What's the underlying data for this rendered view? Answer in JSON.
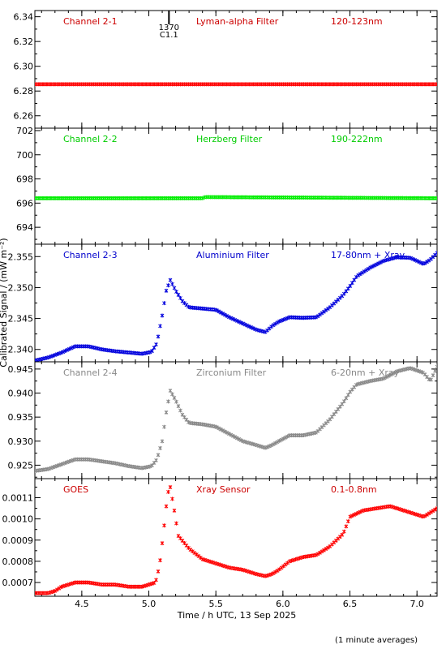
{
  "figure": {
    "xlabel": "Time / h UTC, 13 Sep 2025",
    "ylabel": "Calibrated Signal / (mW m⁻²)",
    "footnote": "(1 minute averages)",
    "xlim": [
      4.15,
      7.15
    ],
    "xticks": [
      4.5,
      5.0,
      5.5,
      6.0,
      6.5,
      7.0
    ],
    "xtick_labels": [
      "4.5",
      "5.0",
      "5.5",
      "6.0",
      "6.5",
      "7.0"
    ],
    "flare_marker": {
      "x": 5.15,
      "label_top": "1370",
      "label_bottom": "C1.1"
    }
  },
  "chart_data": [
    {
      "type": "scatter",
      "panel": "Channel 2-1",
      "labels": [
        "Channel 2-1",
        "Lyman-alpha Filter",
        "120-123nm"
      ],
      "label_color": "#cc0000",
      "color": "#ff0000",
      "ylim": [
        6.25,
        6.345
      ],
      "yticks": [
        6.26,
        6.28,
        6.3,
        6.32,
        6.34
      ],
      "ytick_labels": [
        "6.26",
        "6.28",
        "6.30",
        "6.32",
        "6.34"
      ],
      "series": [
        {
          "x": [
            4.15,
            7.15
          ],
          "y": [
            6.2855,
            6.2855
          ]
        }
      ]
    },
    {
      "type": "scatter",
      "panel": "Channel 2-2",
      "labels": [
        "Channel 2-2",
        "Herzberg Filter",
        "190-222nm"
      ],
      "label_color": "#00cc00",
      "color": "#00ee00",
      "ylim": [
        692.6,
        702.2
      ],
      "yticks": [
        694,
        696,
        698,
        700,
        702
      ],
      "ytick_labels": [
        "694",
        "696",
        "698",
        "700",
        "702"
      ],
      "series": [
        {
          "x": [
            4.15,
            5.4,
            5.42,
            7.15
          ],
          "y": [
            696.4,
            696.4,
            696.5,
            696.4
          ]
        }
      ]
    },
    {
      "type": "scatter",
      "panel": "Channel 2-3",
      "labels": [
        "Channel 2-3",
        "Aluminium Filter",
        "17-80nm + Xray"
      ],
      "label_color": "#0000cc",
      "color": "#0000dd",
      "ylim": [
        2.338,
        2.357
      ],
      "yticks": [
        2.34,
        2.345,
        2.35,
        2.355
      ],
      "ytick_labels": [
        "2.340",
        "2.345",
        "2.350",
        "2.355"
      ],
      "series": [
        {
          "x": [
            4.15,
            4.25,
            4.35,
            4.45,
            4.55,
            4.65,
            4.75,
            4.85,
            4.95,
            5.02,
            5.06,
            5.1,
            5.13,
            5.16,
            5.2,
            5.25,
            5.3,
            5.4,
            5.5,
            5.6,
            5.7,
            5.8,
            5.87,
            5.92,
            5.97,
            6.05,
            6.15,
            6.25,
            6.35,
            6.45,
            6.5,
            6.55,
            6.65,
            6.75,
            6.85,
            6.95,
            7.05,
            7.1,
            7.15
          ],
          "y": [
            2.3382,
            2.3387,
            2.3395,
            2.3405,
            2.3405,
            2.34,
            2.3397,
            2.3395,
            2.3393,
            2.3396,
            2.341,
            2.3455,
            2.3495,
            2.3512,
            2.3495,
            2.3478,
            2.3468,
            2.3466,
            2.3464,
            2.3452,
            2.3442,
            2.3432,
            2.3428,
            2.3438,
            2.3445,
            2.3452,
            2.3451,
            2.3452,
            2.3468,
            2.3488,
            2.3502,
            2.3518,
            2.3532,
            2.3543,
            2.3549,
            2.3548,
            2.3538,
            2.3545,
            2.3556
          ]
        }
      ]
    },
    {
      "type": "scatter",
      "panel": "Channel 2-4",
      "labels": [
        "Channel 2-4",
        "Zirconium Filter",
        "6-20nm + Xray"
      ],
      "label_color": "#888888",
      "color": "#888888",
      "ylim": [
        0.9222,
        0.9465
      ],
      "yticks": [
        0.925,
        0.93,
        0.935,
        0.94,
        0.945
      ],
      "ytick_labels": [
        "0.925",
        "0.930",
        "0.935",
        "0.940",
        "0.945"
      ],
      "series": [
        {
          "x": [
            4.15,
            4.25,
            4.35,
            4.45,
            4.55,
            4.65,
            4.75,
            4.85,
            4.95,
            5.02,
            5.06,
            5.1,
            5.13,
            5.16,
            5.2,
            5.25,
            5.3,
            5.4,
            5.5,
            5.6,
            5.7,
            5.8,
            5.87,
            5.92,
            5.97,
            6.05,
            6.15,
            6.25,
            6.35,
            6.45,
            6.5,
            6.55,
            6.65,
            6.75,
            6.85,
            6.95,
            7.05,
            7.1,
            7.15
          ],
          "y": [
            0.9238,
            0.9242,
            0.9252,
            0.9262,
            0.9262,
            0.9258,
            0.9254,
            0.9248,
            0.9244,
            0.9248,
            0.9262,
            0.93,
            0.936,
            0.9405,
            0.9385,
            0.9355,
            0.9338,
            0.9335,
            0.933,
            0.9315,
            0.93,
            0.9292,
            0.9286,
            0.9292,
            0.93,
            0.9312,
            0.9312,
            0.9318,
            0.9345,
            0.938,
            0.9402,
            0.9418,
            0.9425,
            0.943,
            0.9445,
            0.9452,
            0.9442,
            0.9425,
            0.9455
          ]
        }
      ]
    },
    {
      "type": "scatter",
      "panel": "GOES",
      "labels": [
        "GOES",
        "Xray Sensor",
        "0.1-0.8nm"
      ],
      "label_color": "#cc0000",
      "color": "#ff0000",
      "ylim": [
        0.000635,
        0.00119
      ],
      "yticks": [
        0.0007,
        0.0008,
        0.0009,
        0.001,
        0.0011
      ],
      "ytick_labels": [
        "0.0007",
        "0.0008",
        "0.0009",
        "0.0010",
        "0.0011"
      ],
      "series": [
        {
          "x": [
            4.15,
            4.25,
            4.3,
            4.35,
            4.45,
            4.55,
            4.65,
            4.75,
            4.85,
            4.95,
            5.0,
            5.05,
            5.08,
            5.11,
            5.14,
            5.16,
            5.19,
            5.22,
            5.3,
            5.4,
            5.5,
            5.6,
            5.7,
            5.8,
            5.87,
            5.92,
            5.97,
            6.05,
            6.15,
            6.25,
            6.35,
            6.45,
            6.5,
            6.6,
            6.7,
            6.8,
            6.9,
            7.0,
            7.05,
            7.15
          ],
          "y": [
            0.00065,
            0.00065,
            0.00066,
            0.00068,
            0.0007,
            0.0007,
            0.00069,
            0.00069,
            0.00068,
            0.00068,
            0.00069,
            0.0007,
            0.00078,
            0.00094,
            0.00112,
            0.00115,
            0.00104,
            0.00092,
            0.00086,
            0.00081,
            0.00079,
            0.00077,
            0.00076,
            0.00074,
            0.00073,
            0.00074,
            0.00076,
            0.0008,
            0.00082,
            0.00083,
            0.00087,
            0.00093,
            0.00101,
            0.00104,
            0.00105,
            0.00106,
            0.00104,
            0.00102,
            0.00101,
            0.00105
          ]
        }
      ]
    }
  ]
}
